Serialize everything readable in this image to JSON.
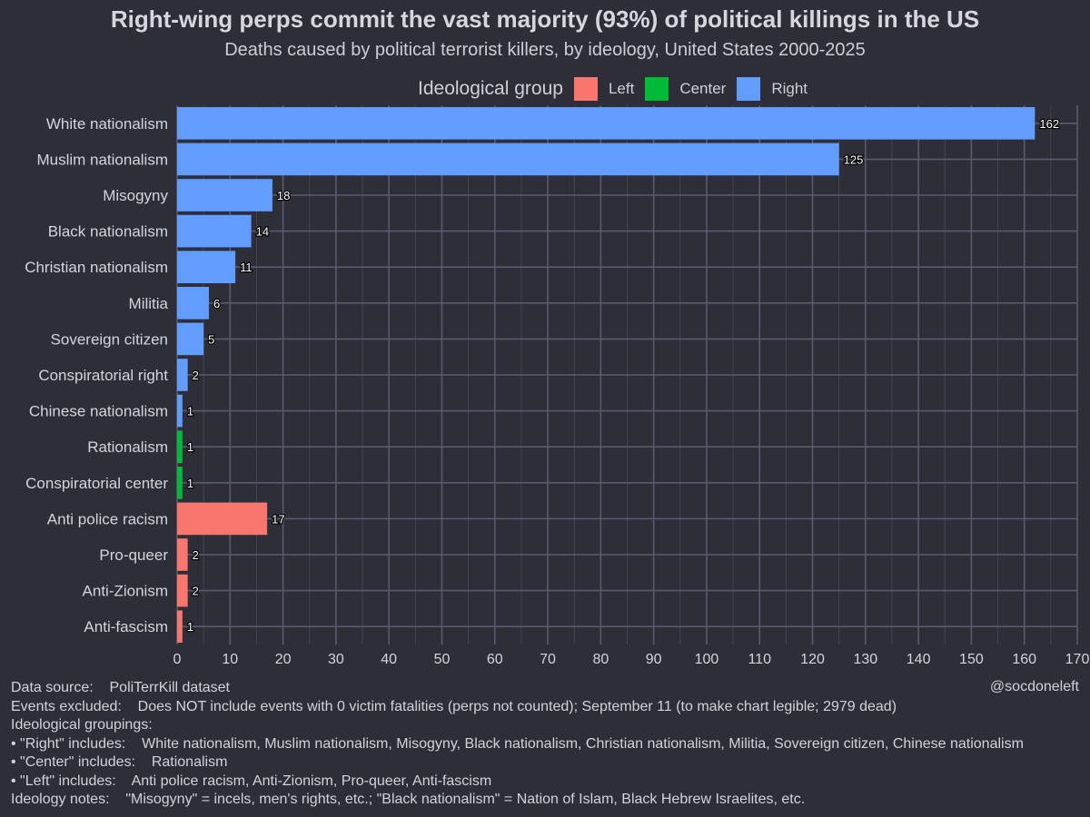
{
  "title": "Right-wing perps commit the vast majority (93%) of political killings in the US",
  "subtitle": "Deaths caused by political terrorist killers, by ideology, United States 2000-2025",
  "legend": {
    "title": "Ideological group",
    "items": [
      {
        "label": "Left",
        "color": "#f8766d"
      },
      {
        "label": "Center",
        "color": "#00ba38"
      },
      {
        "label": "Right",
        "color": "#619cff"
      }
    ]
  },
  "chart_data": {
    "type": "bar",
    "orientation": "horizontal",
    "categories": [
      "White nationalism",
      "Muslim nationalism",
      "Misogyny",
      "Black nationalism",
      "Christian nationalism",
      "Militia",
      "Sovereign citizen",
      "Conspiratorial right",
      "Chinese nationalism",
      "Rationalism",
      "Conspiratorial center",
      "Anti police racism",
      "Pro-queer",
      "Anti-Zionism",
      "Anti-fascism"
    ],
    "values": [
      162,
      125,
      18,
      14,
      11,
      6,
      5,
      2,
      1,
      1,
      1,
      17,
      2,
      2,
      1
    ],
    "groups": [
      "Right",
      "Right",
      "Right",
      "Right",
      "Right",
      "Right",
      "Right",
      "Right",
      "Right",
      "Center",
      "Center",
      "Left",
      "Left",
      "Left",
      "Left"
    ],
    "xlim": [
      0,
      170
    ],
    "xticks": [
      0,
      10,
      20,
      30,
      40,
      50,
      60,
      70,
      80,
      90,
      100,
      110,
      120,
      130,
      140,
      150,
      160,
      170
    ],
    "xlabel": "",
    "ylabel": "",
    "grid": true,
    "legend_position": "top"
  },
  "footer": {
    "data_source_label": "Data source:",
    "data_source_value": "PoliTerrKill dataset",
    "credit": "@socdoneleft",
    "excluded_label": "Events excluded:",
    "excluded_value": "Does NOT include events with 0 victim fatalities (perps not counted); September 11 (to make chart legible; 2979 dead)",
    "groupings_label": "Ideological groupings:",
    "right_label": "• \"Right\" includes:",
    "right_value": "White nationalism, Muslim nationalism, Misogyny, Black nationalism, Christian nationalism, Militia, Sovereign citizen, Chinese nationalism",
    "center_label": "• \"Center\" includes:",
    "center_value": "Rationalism",
    "left_label": "• \"Left\" includes:",
    "left_value": "Anti police racism, Anti-Zionism, Pro-queer, Anti-fascism",
    "notes_label": "Ideology notes:",
    "notes_value": "\"Misogyny\" = incels, men's rights, etc.; \"Black nationalism\" = Nation of Islam, Black Hebrew Israelites, etc."
  }
}
